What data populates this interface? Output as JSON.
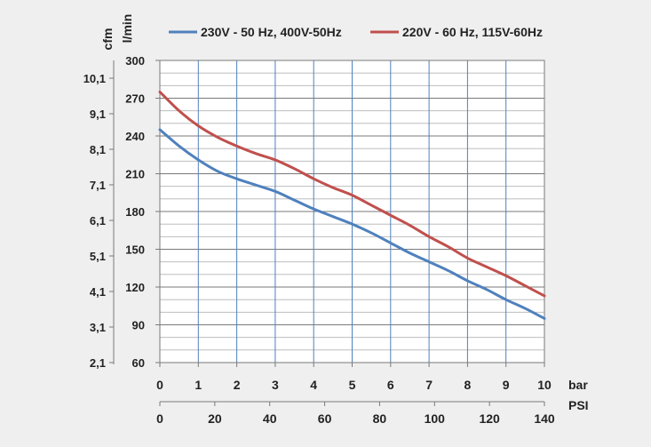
{
  "chart_data": {
    "type": "line",
    "legend": {
      "placement": "top"
    },
    "x_primary": {
      "label": "bar",
      "range": [
        0,
        10
      ],
      "ticks": [
        "0",
        "1",
        "2",
        "3",
        "4",
        "5",
        "6",
        "7",
        "8",
        "9",
        "10"
      ]
    },
    "x_secondary": {
      "label": "PSI",
      "ticks": [
        "0",
        "20",
        "40",
        "60",
        "80",
        "100",
        "120",
        "140"
      ],
      "values": [
        0,
        20,
        40,
        60,
        80,
        100,
        120,
        140
      ]
    },
    "y_primary": {
      "label": "l/min",
      "range": [
        60,
        300
      ],
      "ticks": [
        "60",
        "90",
        "120",
        "150",
        "180",
        "210",
        "240",
        "270",
        "300"
      ]
    },
    "y_secondary": {
      "label": "cfm",
      "ticks": [
        "2,1",
        "3,1",
        "4,1",
        "5,1",
        "6,1",
        "7,1",
        "8,1",
        "9,1",
        "10,1"
      ]
    },
    "grid": true,
    "series": [
      {
        "name": "230V - 50 Hz, 400V-50Hz",
        "color": "#4f81bd",
        "x": [
          0,
          0.5,
          1,
          1.5,
          2,
          2.5,
          3,
          3.5,
          4,
          4.5,
          5,
          5.5,
          6,
          6.5,
          7,
          7.5,
          8,
          8.5,
          9,
          9.5,
          10
        ],
        "y": [
          245,
          232,
          221,
          212,
          206,
          201,
          196,
          189,
          182,
          176,
          170,
          163,
          155,
          147,
          140,
          133,
          125,
          118,
          110,
          103,
          95
        ]
      },
      {
        "name": "220V - 60 Hz, 115V-60Hz",
        "color": "#c0504d",
        "x": [
          0,
          0.5,
          1,
          1.5,
          2,
          2.5,
          3,
          3.5,
          4,
          4.5,
          5,
          5.5,
          6,
          6.5,
          7,
          7.5,
          8,
          8.5,
          9,
          9.5,
          10
        ],
        "y": [
          275,
          260,
          248,
          239,
          232,
          226,
          221,
          214,
          206,
          199,
          193,
          185,
          177,
          169,
          160,
          152,
          143,
          136,
          129,
          121,
          113
        ]
      }
    ]
  }
}
